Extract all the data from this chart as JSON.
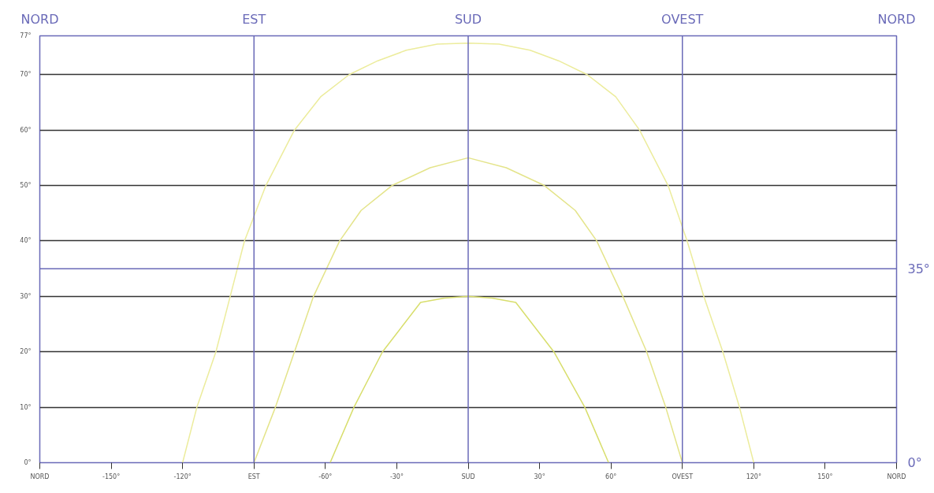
{
  "chart_data": {
    "type": "line",
    "xlim": [
      -180,
      180
    ],
    "xticks": [
      {
        "value": -180,
        "label": "NORD"
      },
      {
        "value": -150,
        "label": "-150°"
      },
      {
        "value": -120,
        "label": "-120°"
      },
      {
        "value": -90,
        "label": "EST"
      },
      {
        "value": -60,
        "label": "-60°"
      },
      {
        "value": -30,
        "label": "-30°"
      },
      {
        "value": 0,
        "label": "SUD"
      },
      {
        "value": 30,
        "label": "30°"
      },
      {
        "value": 60,
        "label": "60°"
      },
      {
        "value": 90,
        "label": "OVEST"
      },
      {
        "value": 120,
        "label": "120°"
      },
      {
        "value": 150,
        "label": "150°"
      },
      {
        "value": 180,
        "label": "NORD"
      }
    ],
    "ylim": [
      0,
      77
    ],
    "yticks": [
      {
        "value": 0,
        "label": "0°"
      },
      {
        "value": 10,
        "label": "10°"
      },
      {
        "value": 20,
        "label": "20°"
      },
      {
        "value": 30,
        "label": "30°"
      },
      {
        "value": 40,
        "label": "40°"
      },
      {
        "value": 50,
        "label": "50°"
      },
      {
        "value": 60,
        "label": "60°"
      },
      {
        "value": 70,
        "label": "70°"
      },
      {
        "value": 77,
        "label": "77°"
      }
    ],
    "grid": "y",
    "series": [
      {
        "color": "#ecec9c",
        "x": [
          -120,
          -114,
          -106,
          -100,
          -94,
          -85,
          -73,
          -62,
          -50,
          -38,
          -26,
          -13,
          0,
          13,
          26,
          38,
          50,
          62,
          72,
          84,
          92,
          99,
          107,
          114,
          120
        ],
        "values": [
          0,
          10,
          20,
          30,
          40,
          50,
          60,
          66,
          70,
          72.5,
          74.4,
          75.5,
          75.7,
          75.5,
          74.4,
          72.5,
          70,
          66,
          60,
          50,
          40,
          30,
          20,
          10,
          0
        ]
      },
      {
        "color": "#e4e48a",
        "x": [
          -90,
          -81,
          -73,
          -65,
          -54,
          -45,
          -32,
          -16,
          0,
          16,
          32,
          45,
          54,
          65,
          75,
          83,
          90
        ],
        "values": [
          0,
          10,
          20,
          30,
          40,
          45.5,
          50,
          53.2,
          55,
          53.2,
          50,
          45.5,
          40,
          30,
          20,
          10,
          0
        ]
      },
      {
        "color": "#d8de6c",
        "x": [
          -58,
          -48,
          -36,
          -20,
          -10,
          0,
          10,
          20,
          36,
          49,
          59
        ],
        "values": [
          0,
          10,
          20,
          28.9,
          29.7,
          30,
          29.7,
          28.9,
          20,
          10,
          0
        ]
      }
    ],
    "ref_lines": [
      {
        "axis": "x",
        "value": -90,
        "label": "EST",
        "color": "#6a6ab8"
      },
      {
        "axis": "x",
        "value": 0,
        "label": "SUD",
        "color": "#6a6ab8"
      },
      {
        "axis": "x",
        "value": 90,
        "label": "OVEST",
        "color": "#6a6ab8"
      },
      {
        "axis": "y",
        "value": 35,
        "label": "35°",
        "color": "#6a6ab8"
      }
    ],
    "annotations": [
      "NORD",
      "NORD",
      "0°"
    ]
  }
}
